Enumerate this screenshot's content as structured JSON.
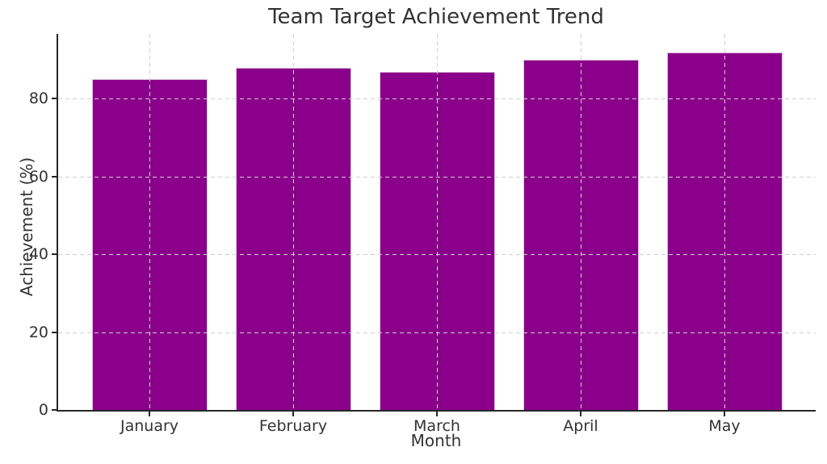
{
  "chart_data": {
    "type": "bar",
    "title": "Team Target Achievement Trend",
    "xlabel": "Month",
    "ylabel": "Achievement (%)",
    "categories": [
      "January",
      "February",
      "March",
      "April",
      "May"
    ],
    "values": [
      85,
      88,
      87,
      90,
      92
    ],
    "ylim": [
      0,
      96.7
    ],
    "yticks": [
      0,
      20,
      40,
      60,
      80
    ],
    "grid": true,
    "grid_style": "dashed",
    "legend": "none",
    "colors": {
      "bar_fill": "#8B008B",
      "bar_edge": "#DCC2DC",
      "grid": "#CFCFCF",
      "spine": "#262626",
      "text": "#333333",
      "background": "#FFFFFF"
    }
  }
}
